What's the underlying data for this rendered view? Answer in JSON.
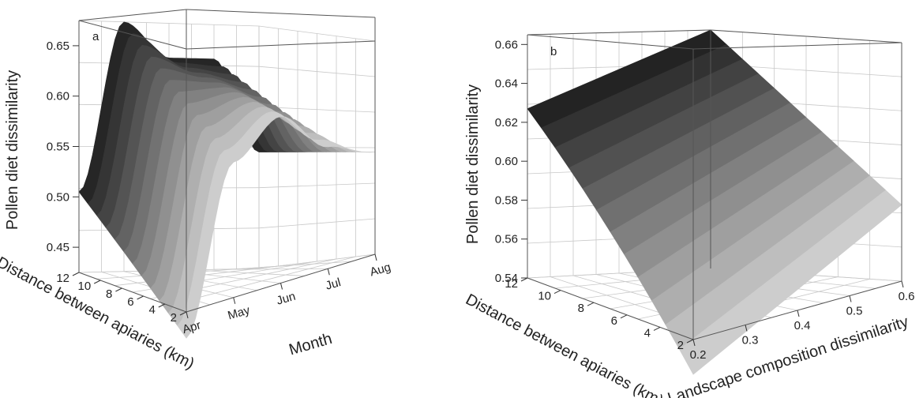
{
  "chart_data": [
    {
      "type": "surface3d",
      "panel_label": "a",
      "zlabel": "Pollen diet dissimilarity",
      "ylabel": "Distance between apiaries (km)",
      "xlabel": "Month",
      "z_ticks": [
        "0.45",
        "0.50",
        "0.55",
        "0.60",
        "0.65"
      ],
      "y_ticks": [
        "2",
        "4",
        "6",
        "8",
        "10",
        "12"
      ],
      "x_ticks": [
        "Apr",
        "May",
        "Jun",
        "Jul",
        "Aug"
      ],
      "zlim": [
        0.42,
        0.68
      ],
      "surface": {
        "months": [
          "Apr",
          "May",
          "Jun",
          "Jul",
          "Aug"
        ],
        "dissimilarity_at_min_distance": [
          0.4,
          0.56,
          0.6,
          0.56,
          0.545
        ],
        "dissimilarity_at_max_distance": [
          0.505,
          0.675,
          0.64,
          0.64,
          0.545
        ]
      }
    },
    {
      "type": "surface3d",
      "panel_label": "b",
      "zlabel": "Pollen diet dissimilarity",
      "ylabel": "Distance between apiaries (km)",
      "xlabel": "Landscape composition dissimilarity",
      "z_ticks": [
        "0.54",
        "0.56",
        "0.58",
        "0.60",
        "0.62",
        "0.64",
        "0.66"
      ],
      "y_ticks": [
        "2",
        "4",
        "6",
        "8",
        "10",
        "12"
      ],
      "x_ticks": [
        "0.2",
        "0.3",
        "0.4",
        "0.5",
        "0.6"
      ],
      "zlim": [
        0.54,
        0.665
      ],
      "surface": {
        "landscape_dissimilarity": [
          0.2,
          0.6
        ],
        "dissimilarity_at_min_distance": [
          0.525,
          0.58
        ],
        "dissimilarity_at_max_distance": [
          0.627,
          0.665
        ]
      }
    }
  ]
}
